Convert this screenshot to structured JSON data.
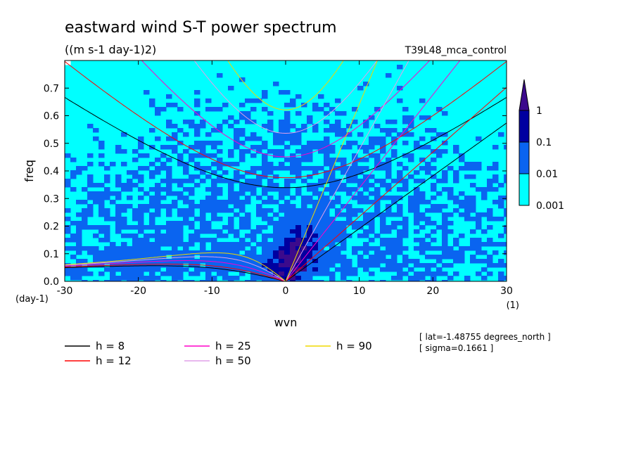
{
  "chart_data": {
    "type": "heatmap",
    "title": "eastward wind S-T power spectrum",
    "subtitle": "((m s-1 day-1)2)",
    "run_label": "T39L48_mca_control",
    "xlabel": "wvn",
    "ylabel": "freq",
    "x_unit": "(1)",
    "y_unit": "(day-1)",
    "xlim": [
      -30,
      30
    ],
    "ylim": [
      0,
      0.8
    ],
    "x_ticks": [
      -30,
      -20,
      -10,
      0,
      10,
      20,
      30
    ],
    "y_ticks": [
      0.0,
      0.1,
      0.2,
      0.3,
      0.4,
      0.5,
      0.6,
      0.7
    ],
    "x_tick_labels": [
      "-30",
      "-20",
      "-10",
      "0",
      "10",
      "20",
      "30"
    ],
    "y_tick_labels": [
      "0.0",
      "0.1",
      "0.2",
      "0.3",
      "0.4",
      "0.5",
      "0.6",
      "0.7"
    ],
    "colorbar": {
      "levels": [
        0.001,
        0.01,
        0.1,
        1
      ],
      "labels": [
        "0.001",
        "0.01",
        "0.1",
        "1"
      ],
      "colors": [
        "#ffffff",
        "#00ffff",
        "#0a64f0",
        "#0000a0",
        "#3c0a8c"
      ]
    },
    "dispersion_curves": [
      {
        "name": "h = 8",
        "h": 8,
        "color": "#000000"
      },
      {
        "name": "h = 12",
        "h": 12,
        "color": "#ff0000"
      },
      {
        "name": "h = 25",
        "h": 25,
        "color": "#ff00c8"
      },
      {
        "name": "h = 50",
        "h": 50,
        "color": "#e0a0e8"
      },
      {
        "name": "h = 90",
        "h": 90,
        "color": "#f0d800"
      }
    ],
    "info": [
      "[ lat=-1.48755 degrees_north ]",
      "[ sigma=0.1661 ]"
    ]
  }
}
